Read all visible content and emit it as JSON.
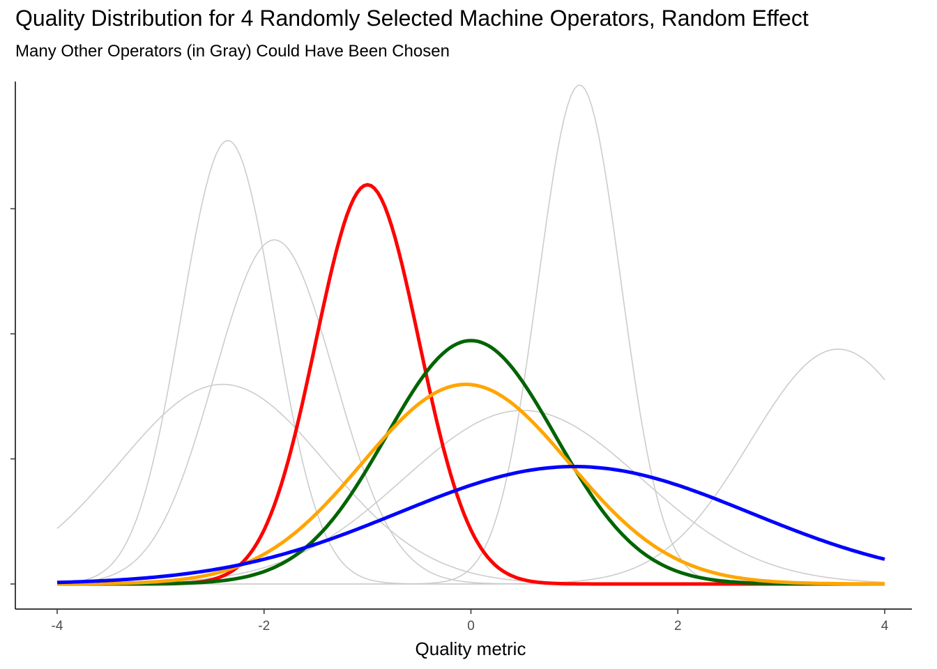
{
  "chart_data": {
    "type": "line",
    "title": "Quality Distribution for 4 Randomly Selected Machine Operators, Random Effect",
    "subtitle": "Many Other Operators (in Gray) Could Have Been Chosen",
    "xlabel": "Quality metric",
    "ylabel": "",
    "xlim": [
      -4,
      4
    ],
    "ylim": [
      0,
      1.0
    ],
    "x_ticks": [
      "-4",
      "-2",
      "0",
      "2",
      "4"
    ],
    "y_ticks_labeled": false,
    "grid": false,
    "legend": "none",
    "background_series": [
      {
        "mean": -2.35,
        "sd": 0.45,
        "color": "#cccccc"
      },
      {
        "mean": -1.9,
        "sd": 0.58,
        "color": "#cccccc"
      },
      {
        "mean": -2.4,
        "sd": 1.0,
        "color": "#cccccc"
      },
      {
        "mean": 0.5,
        "sd": 1.15,
        "color": "#cccccc"
      },
      {
        "mean": 1.05,
        "sd": 0.4,
        "color": "#cccccc"
      },
      {
        "mean": 3.55,
        "sd": 0.85,
        "color": "#cccccc"
      }
    ],
    "series": [
      {
        "mean": -1.0,
        "sd": 0.5,
        "color": "#ff0000"
      },
      {
        "mean": 0.0,
        "sd": 0.82,
        "color": "#006400"
      },
      {
        "mean": -0.05,
        "sd": 1.0,
        "color": "#ffa500"
      },
      {
        "mean": 1.0,
        "sd": 1.7,
        "color": "#0000ff"
      }
    ]
  }
}
